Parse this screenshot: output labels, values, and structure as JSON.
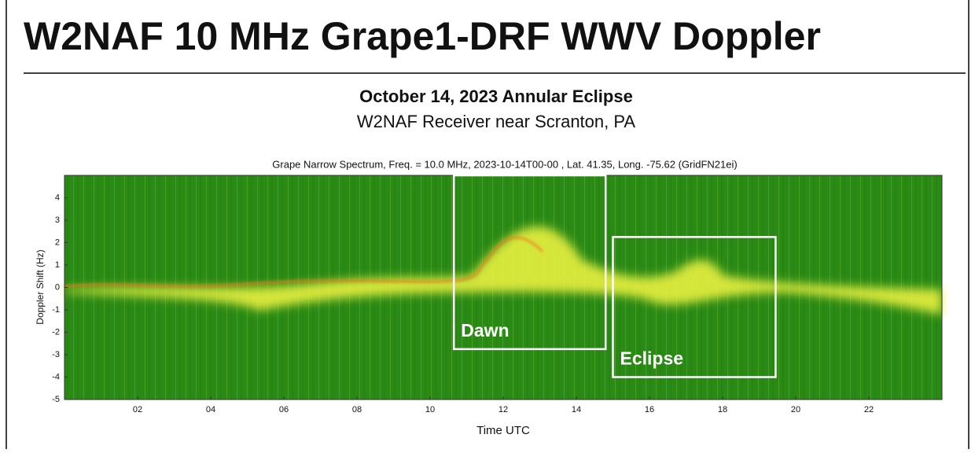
{
  "header": {
    "title": "W2NAF 10 MHz Grape1-DRF WWV Doppler"
  },
  "chart_data": {
    "type": "spectrogram",
    "suptitle": "October 14, 2023 Annular Eclipse",
    "subtitle": "W2NAF Receiver near Scranton, PA",
    "title": "Grape Narrow Spectrum, Freq. = 10.0 MHz, 2023-10-14T00-00 , Lat.  41.35, Long. -75.62 (GridFN21ei)",
    "xlabel": "Time UTC",
    "ylabel": "Doppler Shift (Hz)",
    "xlim": [
      0,
      24
    ],
    "ylim": [
      -5,
      5
    ],
    "xticks": [
      {
        "value": 2,
        "label": "02"
      },
      {
        "value": 4,
        "label": "04"
      },
      {
        "value": 6,
        "label": "06"
      },
      {
        "value": 8,
        "label": "08"
      },
      10,
      12,
      14,
      16,
      18,
      20,
      22
    ],
    "yticks": [
      -5,
      -4,
      -3,
      -2,
      -1,
      0,
      1,
      2,
      3,
      4
    ],
    "annotations": [
      {
        "text": "Dawn",
        "x": [
          10.65,
          14.8
        ],
        "y": [
          -2.75,
          5
        ]
      },
      {
        "text": "Eclipse",
        "x": [
          15.0,
          19.45
        ],
        "y": [
          -4,
          2.25
        ]
      }
    ]
  }
}
